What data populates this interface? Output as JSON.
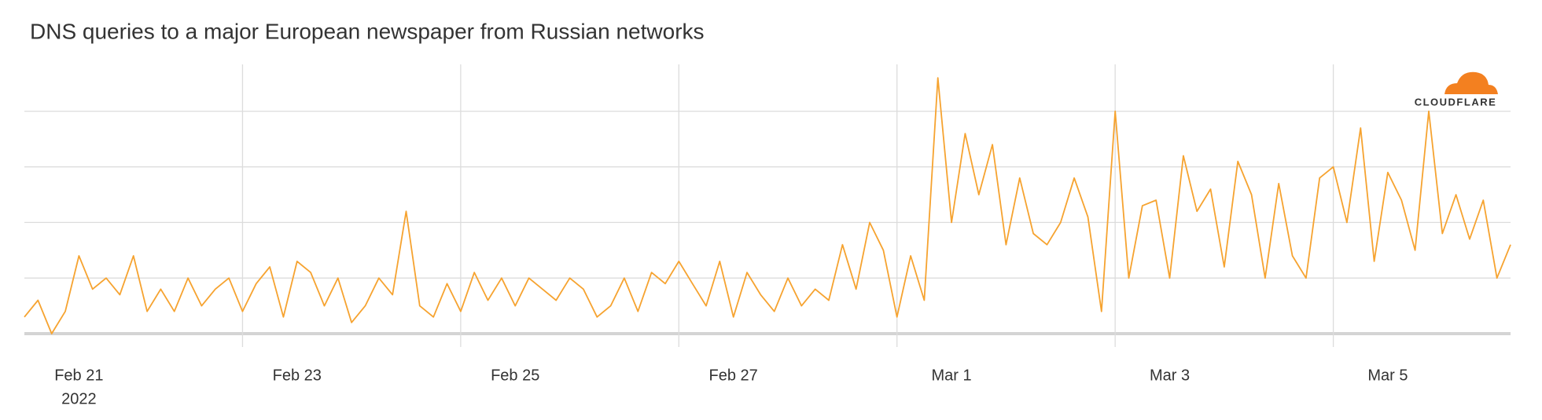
{
  "chart_data": {
    "type": "line",
    "title": "DNS queries to a major European newspaper from Russian networks",
    "logo": "CLOUDFLARE",
    "year_label": "2022",
    "color": "#f6a330",
    "xlim": [
      0,
      13.625
    ],
    "ylim": [
      0,
      4.9
    ],
    "ygrid": [
      0,
      1,
      2,
      3,
      4
    ],
    "xticks": [
      {
        "value": 0,
        "label": "Feb 21"
      },
      {
        "value": 2,
        "label": "Feb 23"
      },
      {
        "value": 4,
        "label": "Feb 25"
      },
      {
        "value": 6,
        "label": "Feb 27"
      },
      {
        "value": 8,
        "label": "Mar 1"
      },
      {
        "value": 10,
        "label": "Mar 3"
      },
      {
        "value": 12,
        "label": "Mar 5"
      }
    ],
    "x": [
      0,
      0.125,
      0.25,
      0.375,
      0.5,
      0.625,
      0.75,
      0.875,
      1,
      1.125,
      1.25,
      1.375,
      1.5,
      1.625,
      1.75,
      1.875,
      2,
      2.125,
      2.25,
      2.375,
      2.5,
      2.625,
      2.75,
      2.875,
      3,
      3.125,
      3.25,
      3.375,
      3.5,
      3.625,
      3.75,
      3.875,
      4,
      4.125,
      4.25,
      4.375,
      4.5,
      4.625,
      4.75,
      4.875,
      5,
      5.125,
      5.25,
      5.375,
      5.5,
      5.625,
      5.75,
      5.875,
      6,
      6.125,
      6.25,
      6.375,
      6.5,
      6.625,
      6.75,
      6.875,
      7,
      7.125,
      7.25,
      7.375,
      7.5,
      7.625,
      7.75,
      7.875,
      8,
      8.125,
      8.25,
      8.375,
      8.5,
      8.625,
      8.75,
      8.875,
      9,
      9.125,
      9.25,
      9.375,
      9.5,
      9.625,
      9.75,
      9.875,
      10,
      10.125,
      10.25,
      10.375,
      10.5,
      10.625,
      10.75,
      10.875,
      11,
      11.125,
      11.25,
      11.375,
      11.5,
      11.625,
      11.75,
      11.875,
      12,
      12.125,
      12.25,
      12.375,
      12.5,
      12.625,
      12.75,
      12.875,
      13,
      13.125,
      13.25,
      13.375,
      13.5,
      13.625
    ],
    "values": [
      0.3,
      0.6,
      0.0,
      0.4,
      1.4,
      0.8,
      1.0,
      0.7,
      1.4,
      0.4,
      0.8,
      0.4,
      1.0,
      0.5,
      0.8,
      1.0,
      0.4,
      0.9,
      1.2,
      0.3,
      1.3,
      1.1,
      0.5,
      1.0,
      0.2,
      0.5,
      1.0,
      0.7,
      2.2,
      0.5,
      0.3,
      0.9,
      0.4,
      1.1,
      0.6,
      1.0,
      0.5,
      1.0,
      0.8,
      0.6,
      1.0,
      0.8,
      0.3,
      0.5,
      1.0,
      0.4,
      1.1,
      0.9,
      1.3,
      0.9,
      0.5,
      1.3,
      0.3,
      1.1,
      0.7,
      0.4,
      1.0,
      0.5,
      0.8,
      0.6,
      1.6,
      0.8,
      2.0,
      1.5,
      0.3,
      1.4,
      0.6,
      4.6,
      2.0,
      3.6,
      2.5,
      3.4,
      1.6,
      2.8,
      1.8,
      1.6,
      2.0,
      2.8,
      2.1,
      0.4,
      4.0,
      1.0,
      2.3,
      2.4,
      1.0,
      3.2,
      2.2,
      2.6,
      1.2,
      3.1,
      2.5,
      1.0,
      2.7,
      1.4,
      1.0,
      2.8,
      3.0,
      2.0,
      3.7,
      1.3,
      2.9,
      2.4,
      1.5,
      4.0,
      1.8,
      2.5,
      1.7,
      2.4,
      1.0,
      1.6
    ]
  }
}
